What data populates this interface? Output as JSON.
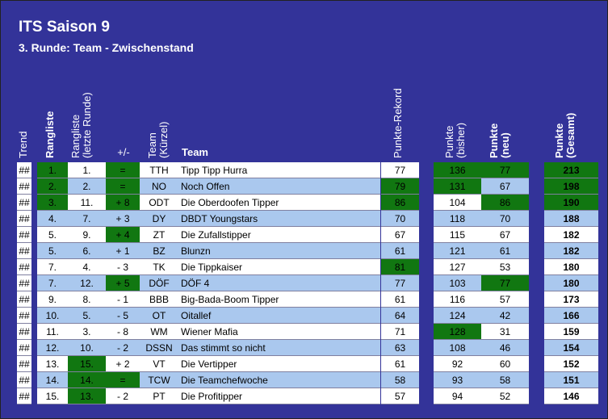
{
  "title": "ITS Saison 9",
  "subtitle": "3. Runde: Team - Zwischenstand",
  "headers": {
    "trend": "Trend",
    "rang": "Rangliste",
    "rang_last_1": "Rangliste",
    "rang_last_2": "(letzte Runde)",
    "diff": "+/-",
    "team_short_1": "Team",
    "team_short_2": "(Kürzel)",
    "team": "Team",
    "rekord": "Punkte-Rekord",
    "bisher_1": "Punkte",
    "bisher_2": "(bisher)",
    "neu_1": "Punkte",
    "neu_2": "(neu)",
    "gesamt_1": "Punkte",
    "gesamt_2": "(Gesamt)"
  },
  "rows": [
    {
      "trend": "##",
      "rank": "1.",
      "last": "1.",
      "diff": "=",
      "code": "TTH",
      "team": "Tipp Tipp Hurra",
      "rekord": "77",
      "bisher": "136",
      "neu": "77",
      "gesamt": "213",
      "hl": {
        "rank": "g",
        "diff": "g",
        "bisher": "g",
        "neu": "g",
        "gesamt": "g"
      }
    },
    {
      "trend": "##",
      "rank": "2.",
      "last": "2.",
      "diff": "=",
      "code": "NO",
      "team": "Noch Offen",
      "rekord": "79",
      "bisher": "131",
      "neu": "67",
      "gesamt": "198",
      "hl": {
        "rank": "g",
        "diff": "g",
        "rekord": "g",
        "bisher": "g",
        "gesamt": "g"
      }
    },
    {
      "trend": "##",
      "rank": "3.",
      "last": "11.",
      "diff": "+ 8",
      "code": "ODT",
      "team": "Die Oberdoofen Tipper",
      "rekord": "86",
      "bisher": "104",
      "neu": "86",
      "gesamt": "190",
      "hl": {
        "rank": "g",
        "diff": "g",
        "rekord": "g",
        "neu": "g",
        "gesamt": "g"
      }
    },
    {
      "trend": "##",
      "rank": "4.",
      "last": "7.",
      "diff": "+ 3",
      "code": "DY",
      "team": "DBDT Youngstars",
      "rekord": "70",
      "bisher": "118",
      "neu": "70",
      "gesamt": "188",
      "hl": {}
    },
    {
      "trend": "##",
      "rank": "5.",
      "last": "9.",
      "diff": "+ 4",
      "code": "ZT",
      "team": "Die Zufallstipper",
      "rekord": "67",
      "bisher": "115",
      "neu": "67",
      "gesamt": "182",
      "hl": {
        "diff": "g"
      }
    },
    {
      "trend": "##",
      "rank": "5.",
      "last": "6.",
      "diff": "+ 1",
      "code": "BZ",
      "team": "Blunzn",
      "rekord": "61",
      "bisher": "121",
      "neu": "61",
      "gesamt": "182",
      "hl": {}
    },
    {
      "trend": "##",
      "rank": "7.",
      "last": "4.",
      "diff": "- 3",
      "code": "TK",
      "team": "Die Tippkaiser",
      "rekord": "81",
      "bisher": "127",
      "neu": "53",
      "gesamt": "180",
      "hl": {
        "rekord": "g"
      }
    },
    {
      "trend": "##",
      "rank": "7.",
      "last": "12.",
      "diff": "+ 5",
      "code": "DÖF",
      "team": "DÖF 4",
      "rekord": "77",
      "bisher": "103",
      "neu": "77",
      "gesamt": "180",
      "hl": {
        "diff": "g",
        "neu": "g"
      }
    },
    {
      "trend": "##",
      "rank": "9.",
      "last": "8.",
      "diff": "- 1",
      "code": "BBB",
      "team": "Big-Bada-Boom Tipper",
      "rekord": "61",
      "bisher": "116",
      "neu": "57",
      "gesamt": "173",
      "hl": {}
    },
    {
      "trend": "##",
      "rank": "10.",
      "last": "5.",
      "diff": "- 5",
      "code": "OT",
      "team": "Oitallef",
      "rekord": "64",
      "bisher": "124",
      "neu": "42",
      "gesamt": "166",
      "hl": {}
    },
    {
      "trend": "##",
      "rank": "11.",
      "last": "3.",
      "diff": "- 8",
      "code": "WM",
      "team": "Wiener Mafia",
      "rekord": "71",
      "bisher": "128",
      "neu": "31",
      "gesamt": "159",
      "hl": {
        "bisher": "g"
      }
    },
    {
      "trend": "##",
      "rank": "12.",
      "last": "10.",
      "diff": "- 2",
      "code": "DSSN",
      "team": "Das stimmt so nicht",
      "rekord": "63",
      "bisher": "108",
      "neu": "46",
      "gesamt": "154",
      "hl": {}
    },
    {
      "trend": "##",
      "rank": "13.",
      "last": "15.",
      "diff": "+ 2",
      "code": "VT",
      "team": "Die Vertipper",
      "rekord": "61",
      "bisher": "92",
      "neu": "60",
      "gesamt": "152",
      "hl": {
        "last": "g"
      }
    },
    {
      "trend": "##",
      "rank": "14.",
      "last": "14.",
      "diff": "=",
      "code": "TCW",
      "team": "Die Teamchefwoche",
      "rekord": "58",
      "bisher": "93",
      "neu": "58",
      "gesamt": "151",
      "hl": {
        "last": "g",
        "diff": "g"
      }
    },
    {
      "trend": "##",
      "rank": "15.",
      "last": "13.",
      "diff": "- 2",
      "code": "PT",
      "team": "Die Profitipper",
      "rekord": "57",
      "bisher": "94",
      "neu": "52",
      "gesamt": "146",
      "hl": {
        "last": "g"
      }
    }
  ]
}
